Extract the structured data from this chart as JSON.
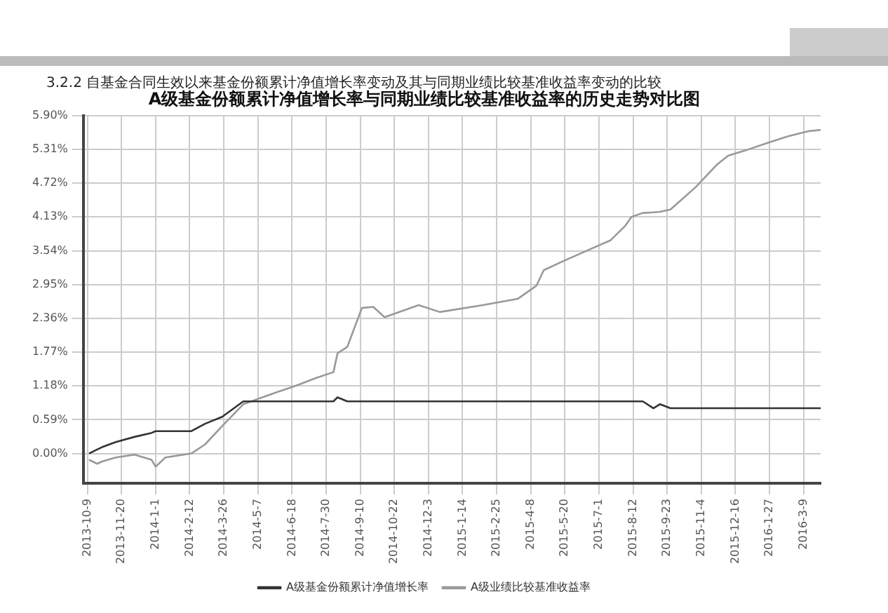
{
  "chart_data": {
    "type": "line",
    "title": "A级基金份额累计净值增长率与同期业绩比较基准收益率的历史走势对比图",
    "annotations": [
      "3.2.2 自基金合同生效以来基金份额累计净值增长率变动及其与同期业绩比较基准收益率变动的比较"
    ],
    "x": [
      "2013-10-11",
      "2013-10-21",
      "2013-10-27",
      "2013-11-13",
      "2013-12-06",
      "2013-12-27",
      "2014-01-01",
      "2014-01-13",
      "2014-02-14",
      "2014-03-03",
      "2014-03-24",
      "2014-04-19",
      "2014-05-30",
      "2014-06-22",
      "2014-07-18",
      "2014-08-08",
      "2014-08-13",
      "2014-08-25",
      "2014-09-12",
      "2014-09-26",
      "2014-10-10",
      "2014-11-21",
      "2014-12-17",
      "2015-02-08",
      "2015-03-23",
      "2015-04-15",
      "2015-04-24",
      "2015-05-15",
      "2015-06-19",
      "2015-07-15",
      "2015-08-02",
      "2015-08-10",
      "2015-08-24",
      "2015-09-06",
      "2015-09-14",
      "2015-09-27",
      "2015-10-05",
      "2015-10-28",
      "2015-11-23",
      "2015-12-07",
      "2015-12-28",
      "2016-01-24",
      "2016-02-19",
      "2016-03-16",
      "2016-03-30"
    ],
    "series": [
      {
        "name": "A级基金份额累计净值增长率",
        "color": "#333333",
        "values": [
          0.0,
          0.07,
          0.11,
          0.2,
          0.29,
          0.36,
          0.39,
          0.39,
          0.39,
          0.52,
          0.64,
          0.91,
          0.91,
          0.91,
          0.91,
          0.91,
          0.98,
          0.91,
          0.91,
          0.91,
          0.91,
          0.91,
          0.91,
          0.91,
          0.91,
          0.91,
          0.91,
          0.91,
          0.91,
          0.91,
          0.91,
          0.91,
          0.91,
          0.79,
          0.86,
          0.79,
          0.79,
          0.79,
          0.79,
          0.79,
          0.79,
          0.79,
          0.79,
          0.79,
          0.79
        ]
      },
      {
        "name": "A级业绩比较基准收益率",
        "color": "#999999",
        "values": [
          -0.11,
          -0.18,
          -0.14,
          -0.07,
          -0.02,
          -0.11,
          -0.23,
          -0.07,
          0.0,
          0.16,
          0.48,
          0.86,
          1.07,
          1.18,
          1.32,
          1.42,
          1.75,
          1.86,
          2.54,
          2.56,
          2.38,
          2.59,
          2.47,
          2.59,
          2.7,
          2.93,
          3.2,
          3.34,
          3.56,
          3.72,
          3.97,
          4.13,
          4.2,
          4.21,
          4.22,
          4.26,
          4.36,
          4.65,
          5.04,
          5.2,
          5.29,
          5.42,
          5.54,
          5.63,
          5.65
        ]
      }
    ],
    "xlim": [
      "2013-10-04",
      "2016-03-30"
    ],
    "xticks": [
      {
        "value": "2013-10-09",
        "label": "2013-10-9"
      },
      {
        "value": "2013-11-20",
        "label": "2013-11-20"
      },
      {
        "value": "2014-01-01",
        "label": "2014-1-1"
      },
      {
        "value": "2014-02-12",
        "label": "2014-2-12"
      },
      {
        "value": "2014-03-26",
        "label": "2014-3-26"
      },
      {
        "value": "2014-05-07",
        "label": "2014-5-7"
      },
      {
        "value": "2014-06-18",
        "label": "2014-6-18"
      },
      {
        "value": "2014-07-30",
        "label": "2014-7-30"
      },
      {
        "value": "2014-09-10",
        "label": "2014-9-10"
      },
      {
        "value": "2014-10-22",
        "label": "2014-10-22"
      },
      {
        "value": "2014-12-03",
        "label": "2014-12-3"
      },
      {
        "value": "2015-01-14",
        "label": "2015-1-14"
      },
      {
        "value": "2015-02-25",
        "label": "2015-2-25"
      },
      {
        "value": "2015-04-08",
        "label": "2015-4-8"
      },
      {
        "value": "2015-05-20",
        "label": "2015-5-20"
      },
      {
        "value": "2015-07-01",
        "label": "2015-7-1"
      },
      {
        "value": "2015-08-12",
        "label": "2015-8-12"
      },
      {
        "value": "2015-09-23",
        "label": "2015-9-23"
      },
      {
        "value": "2015-11-04",
        "label": "2015-11-4"
      },
      {
        "value": "2015-12-16",
        "label": "2015-12-16"
      },
      {
        "value": "2016-01-27",
        "label": "2016-1-27"
      },
      {
        "value": "2016-03-09",
        "label": "2016-3-9"
      }
    ],
    "ylim": [
      -0.52,
      5.9
    ],
    "yticks": [
      {
        "value": 0,
        "label": "0.00%"
      },
      {
        "value": 0.59,
        "label": "0.59%"
      },
      {
        "value": 1.18,
        "label": "1.18%"
      },
      {
        "value": 1.77,
        "label": "1.77%"
      },
      {
        "value": 2.36,
        "label": "2.36%"
      },
      {
        "value": 2.95,
        "label": "2.95%"
      },
      {
        "value": 3.54,
        "label": "3.54%"
      },
      {
        "value": 4.13,
        "label": "4.13%"
      },
      {
        "value": 4.72,
        "label": "4.72%"
      },
      {
        "value": 5.31,
        "label": "5.31%"
      },
      {
        "value": 5.9,
        "label": "5.90%"
      }
    ],
    "grid": true,
    "legend": "bottom",
    "marker": "none",
    "line_style": "solid"
  }
}
